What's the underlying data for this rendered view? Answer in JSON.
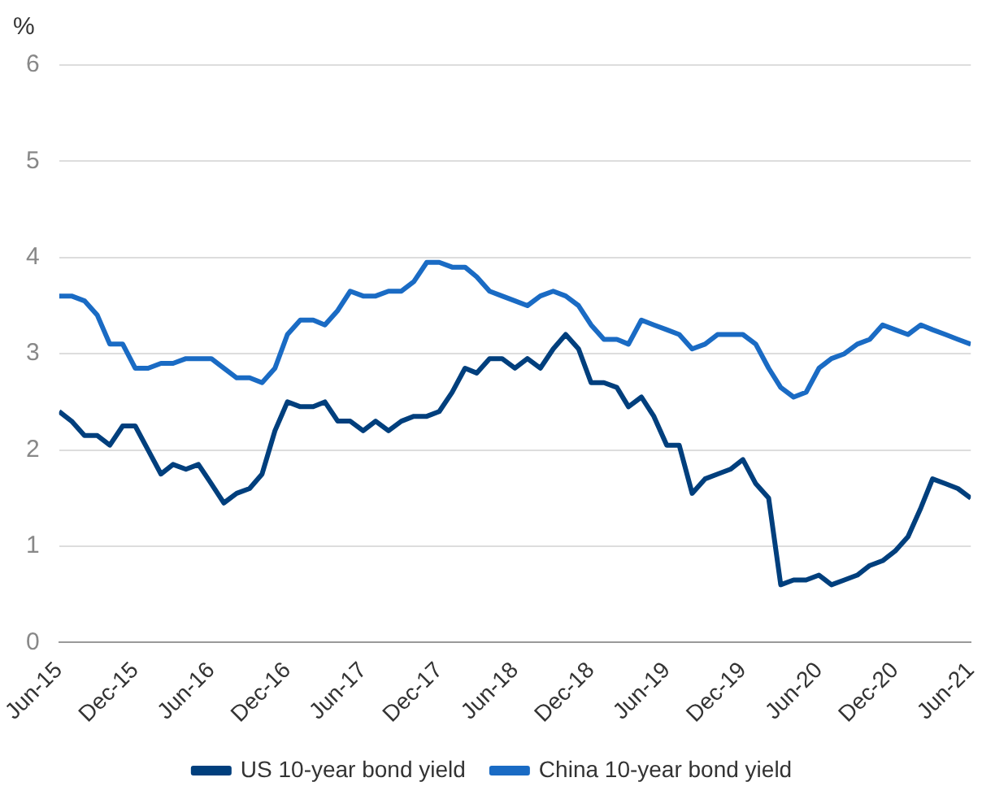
{
  "chart_data": {
    "type": "line",
    "ylabel": "%",
    "x": [
      "2015-06",
      "2015-07",
      "2015-08",
      "2015-09",
      "2015-10",
      "2015-11",
      "2015-12",
      "2016-01",
      "2016-02",
      "2016-03",
      "2016-04",
      "2016-05",
      "2016-06",
      "2016-07",
      "2016-08",
      "2016-09",
      "2016-10",
      "2016-11",
      "2016-12",
      "2017-01",
      "2017-02",
      "2017-03",
      "2017-04",
      "2017-05",
      "2017-06",
      "2017-07",
      "2017-08",
      "2017-09",
      "2017-10",
      "2017-11",
      "2017-12",
      "2018-01",
      "2018-02",
      "2018-03",
      "2018-04",
      "2018-05",
      "2018-06",
      "2018-07",
      "2018-08",
      "2018-09",
      "2018-10",
      "2018-11",
      "2018-12",
      "2019-01",
      "2019-02",
      "2019-03",
      "2019-04",
      "2019-05",
      "2019-06",
      "2019-07",
      "2019-08",
      "2019-09",
      "2019-10",
      "2019-11",
      "2019-12",
      "2020-01",
      "2020-02",
      "2020-03",
      "2020-04",
      "2020-05",
      "2020-06",
      "2020-07",
      "2020-08",
      "2020-09",
      "2020-10",
      "2020-11",
      "2020-12",
      "2021-01",
      "2021-02",
      "2021-03",
      "2021-04",
      "2021-05",
      "2021-06"
    ],
    "series": [
      {
        "name": "US 10-year bond yield",
        "color": "#003f7d",
        "values": [
          2.4,
          2.3,
          2.15,
          2.15,
          2.05,
          2.25,
          2.25,
          2.0,
          1.75,
          1.85,
          1.8,
          1.85,
          1.65,
          1.45,
          1.55,
          1.6,
          1.75,
          2.2,
          2.5,
          2.45,
          2.45,
          2.5,
          2.3,
          2.3,
          2.2,
          2.3,
          2.2,
          2.3,
          2.35,
          2.35,
          2.4,
          2.6,
          2.85,
          2.8,
          2.95,
          2.95,
          2.85,
          2.95,
          2.85,
          3.05,
          3.2,
          3.05,
          2.7,
          2.7,
          2.65,
          2.45,
          2.55,
          2.35,
          2.05,
          2.05,
          1.55,
          1.7,
          1.75,
          1.8,
          1.9,
          1.65,
          1.5,
          0.6,
          0.65,
          0.65,
          0.7,
          0.6,
          0.65,
          0.7,
          0.8,
          0.85,
          0.95,
          1.1,
          1.4,
          1.7,
          1.65,
          1.6,
          1.5
        ]
      },
      {
        "name": "China 10-year bond yield",
        "color": "#1a6bc4",
        "values": [
          3.6,
          3.6,
          3.55,
          3.4,
          3.1,
          3.1,
          2.85,
          2.85,
          2.9,
          2.9,
          2.95,
          2.95,
          2.95,
          2.85,
          2.75,
          2.75,
          2.7,
          2.85,
          3.2,
          3.35,
          3.35,
          3.3,
          3.45,
          3.65,
          3.6,
          3.6,
          3.65,
          3.65,
          3.75,
          3.95,
          3.95,
          3.9,
          3.9,
          3.8,
          3.65,
          3.6,
          3.55,
          3.5,
          3.6,
          3.65,
          3.6,
          3.5,
          3.3,
          3.15,
          3.15,
          3.1,
          3.35,
          3.3,
          3.25,
          3.2,
          3.05,
          3.1,
          3.2,
          3.2,
          3.2,
          3.1,
          2.85,
          2.65,
          2.55,
          2.6,
          2.85,
          2.95,
          3.0,
          3.1,
          3.15,
          3.3,
          3.25,
          3.2,
          3.3,
          3.25,
          3.2,
          3.15,
          3.1
        ]
      }
    ],
    "xlim": [
      "2015-06",
      "2021-06"
    ],
    "xticks": [
      {
        "value": "2015-06",
        "label": "Jun-15"
      },
      {
        "value": "2015-12",
        "label": "Dec-15"
      },
      {
        "value": "2016-06",
        "label": "Jun-16"
      },
      {
        "value": "2016-12",
        "label": "Dec-16"
      },
      {
        "value": "2017-06",
        "label": "Jun-17"
      },
      {
        "value": "2017-12",
        "label": "Dec-17"
      },
      {
        "value": "2018-06",
        "label": "Jun-18"
      },
      {
        "value": "2018-12",
        "label": "Dec-18"
      },
      {
        "value": "2019-06",
        "label": "Jun-19"
      },
      {
        "value": "2019-12",
        "label": "Dec-19"
      },
      {
        "value": "2020-06",
        "label": "Jun-20"
      },
      {
        "value": "2020-12",
        "label": "Dec-20"
      },
      {
        "value": "2021-06",
        "label": "Jun-21"
      }
    ],
    "ylim": [
      0,
      6
    ],
    "yticks": [
      0,
      1,
      2,
      3,
      4,
      5,
      6
    ],
    "grid": "y",
    "legend": "bottom",
    "marker": "none",
    "line_style": "solid"
  }
}
